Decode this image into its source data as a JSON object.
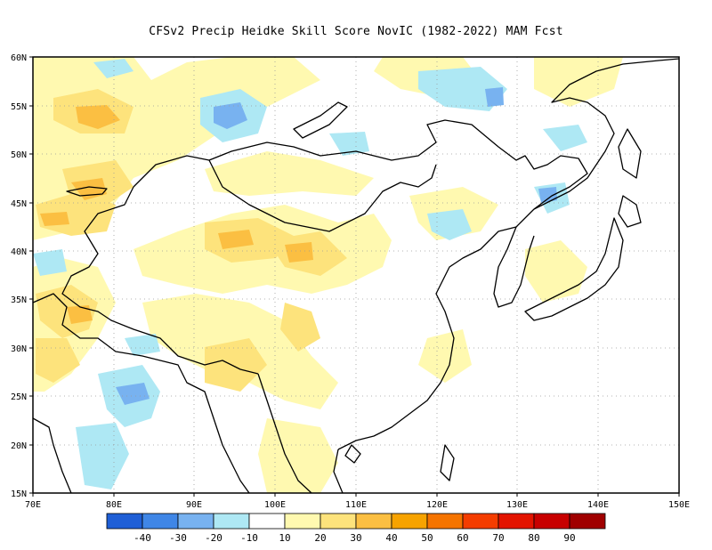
{
  "title": "CFSv2 Precip Heidke Skill Score NovIC (1982-2022) MAM Fcst",
  "map": {
    "lon_range": [
      70,
      150
    ],
    "lat_range": [
      15,
      60
    ],
    "lon_ticks": [
      "70E",
      "80E",
      "90E",
      "100E",
      "110E",
      "120E",
      "130E",
      "140E",
      "150E"
    ],
    "lat_ticks": [
      "15N",
      "20N",
      "25N",
      "30N",
      "35N",
      "40N",
      "45N",
      "50N",
      "55N",
      "60N"
    ],
    "grid": "dotted"
  },
  "colorbar": {
    "colors": [
      "#1f5fd6",
      "#3f86e6",
      "#78b2f0",
      "#aee8f4",
      "#ffffff",
      "#fff9b0",
      "#fde37c",
      "#fbbf42",
      "#f7a300",
      "#f57400",
      "#f43d00",
      "#e31400",
      "#c80000",
      "#a00000"
    ],
    "labels": [
      "-40",
      "-30",
      "-20",
      "-10",
      "10",
      "20",
      "30",
      "40",
      "50",
      "60",
      "70",
      "80",
      "90"
    ]
  },
  "palette": {
    "coast": "#000000",
    "frame": "#000000"
  }
}
